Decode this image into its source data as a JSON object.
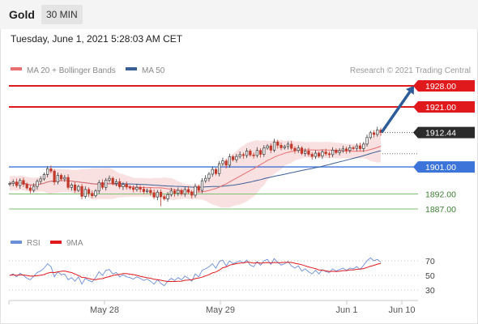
{
  "header": {
    "instrument": "Gold",
    "timeframe": "30 MIN"
  },
  "datetime": "Tuesday, June 1, 2021 5:28:03 AM CET",
  "legend": {
    "ma20": "MA 20 + Bollinger Bands",
    "ma50": "MA 50",
    "credit": "Research © 2021 Trading Central"
  },
  "rsi_legend": {
    "rsi": "RSI",
    "ma9": "9MA"
  },
  "colors": {
    "resistance": "#e0191d",
    "support": "#3d74d9",
    "target_support": "#7cbf72",
    "ma20": "#e87070",
    "ma50": "#3a5f96",
    "band": "#f9dcdc",
    "candle_up": "#3a3a3a",
    "candle_down": "#c0392b",
    "arrow": "#2d5c99",
    "rsi": "#6d8ed9",
    "rsi_ma": "#e0191d",
    "last": "#2b2b2b"
  },
  "chart_data": [
    {
      "type": "candlestick",
      "x_ticks": [
        "May 28",
        "May 29",
        "Jun 1",
        "Jun 10"
      ],
      "levels": [
        {
          "label": "1928.00",
          "value": 1928.0,
          "kind": "resistance"
        },
        {
          "label": "1921.00",
          "value": 1921.0,
          "kind": "resistance"
        },
        {
          "label": "1901.00",
          "value": 1901.0,
          "kind": "pivot"
        },
        {
          "label": "1892.00",
          "value": 1892.0,
          "kind": "support"
        },
        {
          "label": "1887.00",
          "value": 1887.0,
          "kind": "support"
        }
      ],
      "last_price": {
        "label": "1912.44",
        "value": 1912.44
      },
      "close": [
        1895.5,
        1896.0,
        1894.8,
        1896.5,
        1895.2,
        1894.0,
        1893.2,
        1894.5,
        1896.2,
        1897.0,
        1898.5,
        1900.4,
        1899.6,
        1896.0,
        1898.2,
        1897.0,
        1897.5,
        1894.2,
        1895.0,
        1893.2,
        1894.5,
        1891.2,
        1893.5,
        1892.2,
        1891.4,
        1893.0,
        1895.8,
        1894.2,
        1896.6,
        1897.2,
        1895.5,
        1896.1,
        1894.4,
        1895.2,
        1894.3,
        1894.0,
        1893.5,
        1894.2,
        1893.6,
        1892.8,
        1893.2,
        1892.4,
        1891.0,
        1892.6,
        1891.1,
        1890.4,
        1891.8,
        1893.0,
        1892.2,
        1893.2,
        1892.0,
        1893.5,
        1892.6,
        1891.6,
        1894.5,
        1893.2,
        1896.4,
        1897.2,
        1898.6,
        1900.2,
        1898.8,
        1902.1,
        1903.0,
        1901.6,
        1904.4,
        1903.4,
        1904.5,
        1905.1,
        1904.8,
        1906.3,
        1905.0,
        1904.8,
        1906.5,
        1905.2,
        1907.3,
        1908.0,
        1906.6,
        1909.3,
        1908.2,
        1907.4,
        1907.8,
        1908.6,
        1907.2,
        1906.5,
        1907.3,
        1905.5,
        1906.3,
        1905.2,
        1904.5,
        1905.6,
        1904.6,
        1906.0,
        1905.4,
        1905.1,
        1906.6,
        1905.8,
        1906.4,
        1907.0,
        1906.5,
        1907.4,
        1907.2,
        1908.0,
        1907.1,
        1908.6,
        1910.8,
        1912.4,
        1911.8,
        1913.3,
        1912.44
      ],
      "ma20_and_ma50": "overlaid lines computed from close",
      "target_arrow": {
        "from_value": 1912.5,
        "to_value": 1928.0
      }
    },
    {
      "type": "line",
      "name": "RSI",
      "y_ticks": [
        70,
        50,
        30
      ],
      "ylim": [
        20,
        80
      ],
      "rsi": [
        50,
        52,
        48,
        53,
        50,
        46,
        44,
        49,
        54,
        56,
        60,
        66,
        62,
        48,
        55,
        51,
        52,
        44,
        47,
        42,
        48,
        38,
        46,
        43,
        41,
        47,
        55,
        50,
        57,
        58,
        52,
        54,
        48,
        51,
        48,
        47,
        45,
        48,
        46,
        43,
        45,
        42,
        38,
        44,
        39,
        36,
        42,
        46,
        43,
        47,
        44,
        49,
        46,
        42,
        52,
        48,
        57,
        59,
        62,
        66,
        60,
        69,
        71,
        63,
        70,
        66,
        68,
        70,
        67,
        71,
        64,
        62,
        69,
        64,
        70,
        72,
        65,
        73,
        68,
        64,
        66,
        69,
        63,
        60,
        63,
        56,
        59,
        55,
        52,
        57,
        52,
        58,
        55,
        54,
        59,
        56,
        58,
        60,
        57,
        60,
        59,
        62,
        58,
        64,
        70,
        74,
        70,
        72,
        68
      ]
    }
  ]
}
